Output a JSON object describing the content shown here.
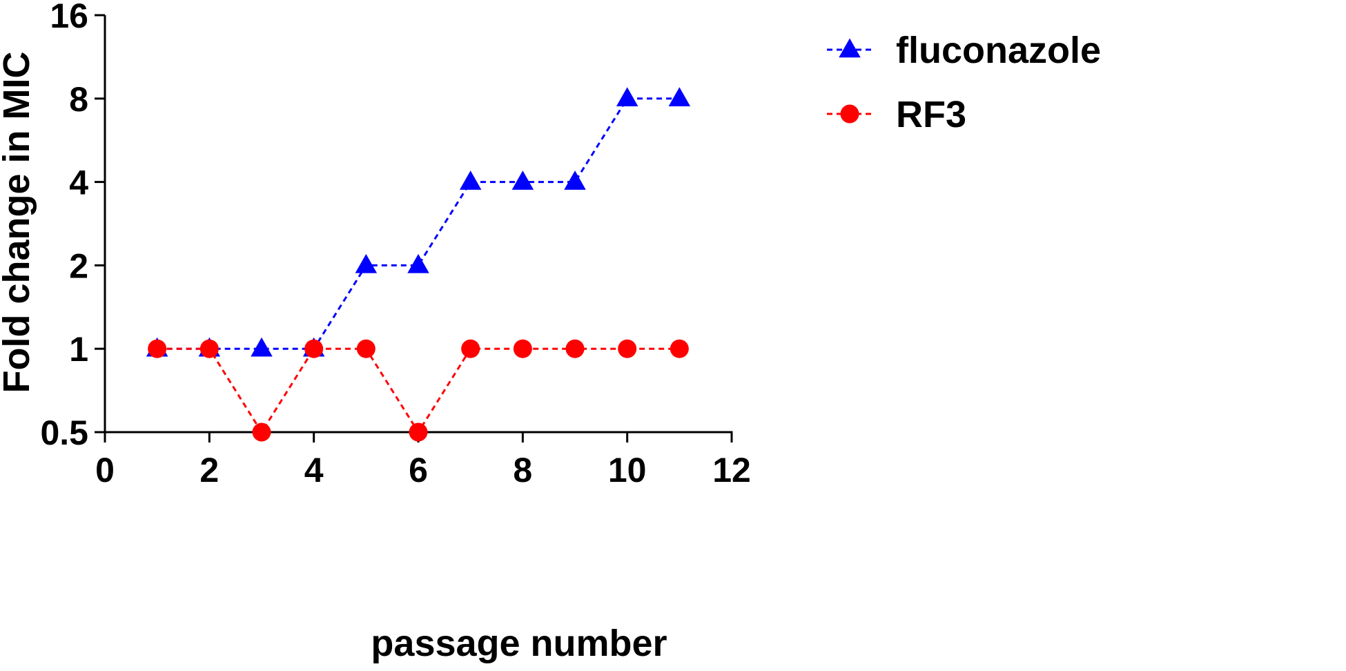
{
  "chart_data": {
    "type": "line",
    "title": "",
    "xlabel": "passage number",
    "ylabel": "Fold change in MIC",
    "xlim": [
      0,
      12
    ],
    "ylim": [
      0.5,
      16
    ],
    "yscale": "log2",
    "x_ticks": [
      0,
      2,
      4,
      6,
      8,
      10,
      12
    ],
    "x_tick_labels": [
      "0",
      "2",
      "4",
      "6",
      "8",
      "10",
      "12"
    ],
    "y_ticks": [
      0.5,
      1,
      2,
      4,
      8,
      16
    ],
    "y_tick_labels": [
      "0.5",
      "1",
      "2",
      "4",
      "8",
      "16"
    ],
    "grid": false,
    "legend_position": "top-right",
    "series": [
      {
        "name": "fluconazole",
        "color": "#0000ff",
        "marker": "triangle",
        "line_style": "dashed",
        "x": [
          1,
          2,
          3,
          4,
          5,
          6,
          7,
          8,
          9,
          10,
          11
        ],
        "y": [
          1,
          1,
          1,
          1,
          2,
          2,
          4,
          4,
          4,
          8,
          8
        ]
      },
      {
        "name": "RF3",
        "color": "#ff0000",
        "marker": "circle",
        "line_style": "dashed",
        "x": [
          1,
          2,
          3,
          4,
          5,
          6,
          7,
          8,
          9,
          10,
          11
        ],
        "y": [
          1,
          1,
          0.5,
          1,
          1,
          0.5,
          1,
          1,
          1,
          1,
          1
        ]
      }
    ]
  }
}
